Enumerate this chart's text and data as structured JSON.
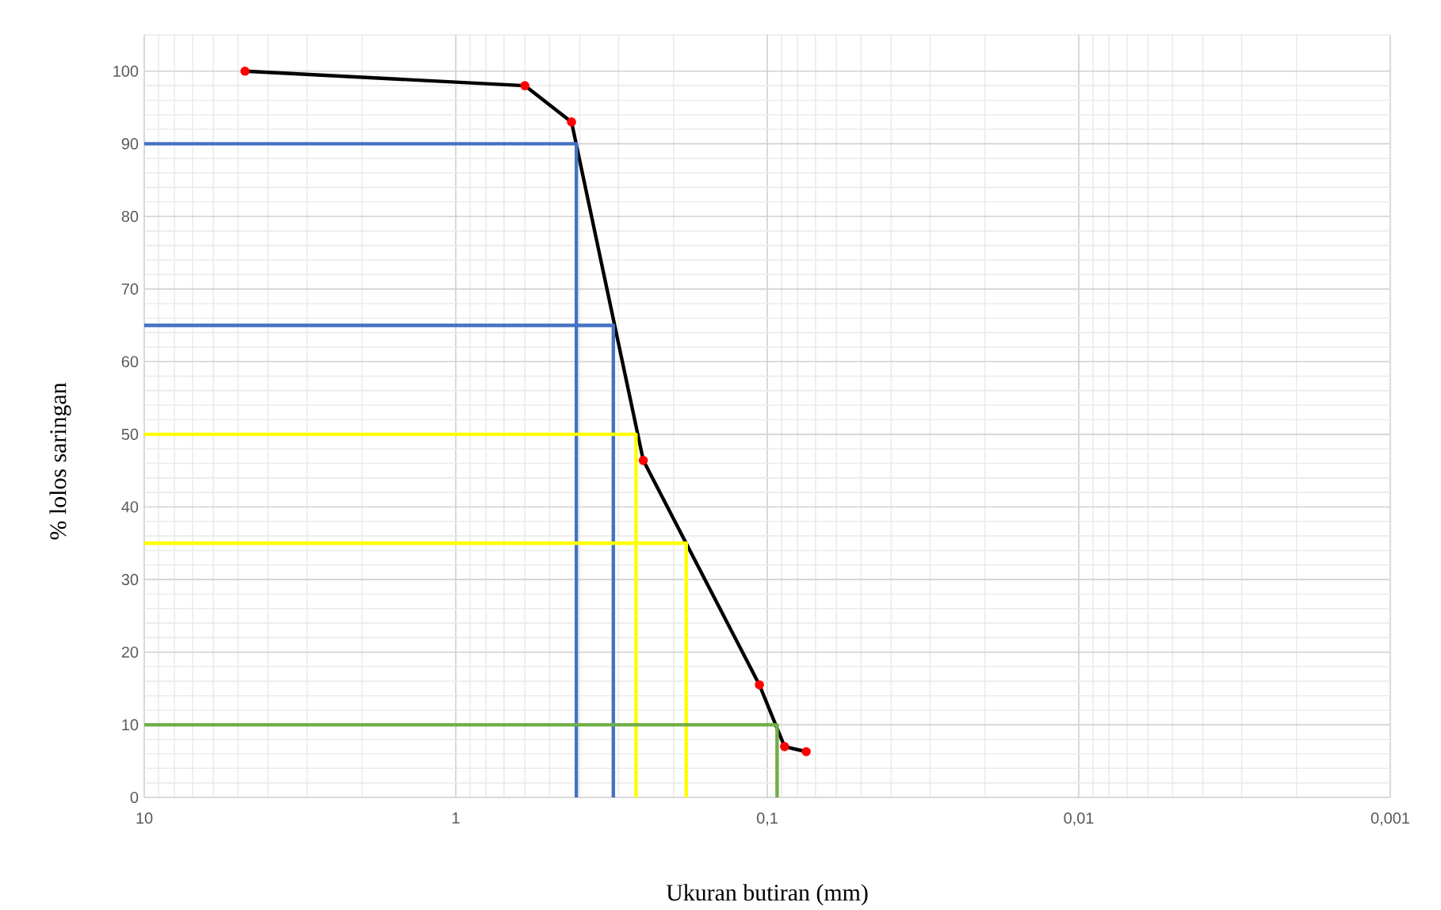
{
  "chart_data": {
    "type": "line",
    "xlabel": "Ukuran butiran (mm)",
    "ylabel": "% lolos saringan",
    "log": "x",
    "grid": true,
    "marker": "circle",
    "xlim": [
      10,
      0.001
    ],
    "ylim": [
      0,
      105
    ],
    "xticks": [
      {
        "value": 10,
        "label": "10"
      },
      {
        "value": 1,
        "label": "1"
      },
      {
        "value": 0.1,
        "label": "0,1"
      },
      {
        "value": 0.01,
        "label": "0,01"
      },
      {
        "value": 0.001,
        "label": "0,001"
      }
    ],
    "yticks": [
      0,
      10,
      20,
      30,
      40,
      50,
      60,
      70,
      80,
      90,
      100
    ],
    "series": [
      {
        "color": "#000000",
        "x": [
          4.75,
          0.6,
          0.425,
          0.25,
          0.106,
          0.088,
          0.075
        ],
        "values": [
          100,
          98,
          93,
          46.4,
          15.5,
          7,
          6.3
        ]
      },
      {
        "color": "#4472c4",
        "marker": "none",
        "x": [
          10,
          0.41,
          0.41
        ],
        "values": [
          90,
          90,
          0
        ]
      },
      {
        "color": "#4472c4",
        "marker": "none",
        "x": [
          10,
          0.312,
          0.312
        ],
        "values": [
          65,
          65,
          0
        ]
      },
      {
        "color": "#ffff00",
        "marker": "none",
        "x": [
          10,
          0.264,
          0.264
        ],
        "values": [
          50,
          50,
          0
        ]
      },
      {
        "color": "#ffff00",
        "marker": "none",
        "x": [
          10,
          0.182,
          0.182
        ],
        "values": [
          35,
          35,
          0
        ]
      },
      {
        "color": "#70ad47",
        "marker": "none",
        "x": [
          10,
          0.093,
          0.093
        ],
        "values": [
          10,
          10,
          0
        ]
      }
    ]
  }
}
